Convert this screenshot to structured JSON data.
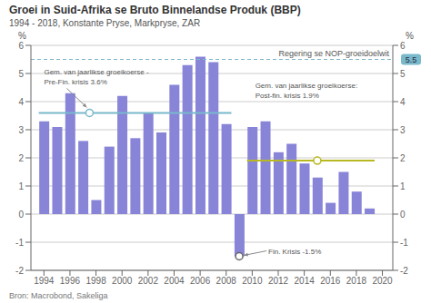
{
  "chart_data": {
    "type": "bar",
    "title": "Groei in Suid-Afrika se Bruto Binnelandse Produk (BBP)",
    "subtitle": "1994 - 2018, Konstante Pryse, Markpryse, ZAR",
    "source": "Bron: Macrobond, Sakeliga",
    "x": [
      1994,
      1995,
      1996,
      1997,
      1998,
      1999,
      2000,
      2001,
      2002,
      2003,
      2004,
      2005,
      2006,
      2007,
      2008,
      2009,
      2010,
      2011,
      2012,
      2013,
      2014,
      2015,
      2016,
      2017,
      2018,
      2019
    ],
    "values": [
      3.3,
      3.1,
      4.3,
      2.6,
      0.5,
      2.4,
      4.2,
      2.7,
      3.6,
      2.9,
      4.6,
      5.3,
      5.6,
      5.4,
      3.2,
      -1.5,
      3.1,
      3.3,
      2.2,
      2.5,
      1.8,
      1.3,
      0.4,
      1.5,
      0.8,
      0.2
    ],
    "color": "#8884d8",
    "xlim": [
      1993.0,
      2020.8
    ],
    "xticks": [
      1994,
      1996,
      1998,
      2000,
      2002,
      2004,
      2006,
      2008,
      2010,
      2012,
      2014,
      2016,
      2018,
      2020
    ],
    "ylim": [
      -2,
      6
    ],
    "yticks": [
      -2,
      -1,
      0,
      1,
      2,
      3,
      4,
      5,
      6
    ],
    "y2lim": [
      -2,
      6
    ],
    "y2ticks": [
      -2,
      -1,
      0,
      1,
      2,
      3,
      4,
      5,
      6
    ],
    "ylabel": "%",
    "y2label": "%",
    "grid": true,
    "reference_lines": [
      {
        "y": 5.5,
        "x": [
          1993.0,
          2020.8
        ],
        "color": "#7ab8cc",
        "line_style": "dashed",
        "label": [
          "Regering se NOP-groeidoelwit"
        ],
        "value_label": "5.5"
      },
      {
        "y": 3.6,
        "x": [
          1993.6,
          2008.4
        ],
        "color": "#7ab8cc",
        "line_style": "solid"
      },
      {
        "y": 1.9,
        "x": [
          2009.6,
          2019.4
        ],
        "color": "#b8b820",
        "line_style": "solid",
        "label": [
          "Gem. van jaarlikse groeikoerse:",
          "Post-fin. krisis 1.9%"
        ]
      }
    ],
    "markers": [
      {
        "x": 1997.5,
        "y": 3.6,
        "color": "#7ab8cc"
      },
      {
        "x": 2015.0,
        "y": 1.9,
        "color": "#b8b820"
      },
      {
        "x": 2009,
        "y": -1.5,
        "color": "#666666"
      }
    ],
    "annotations": [
      {
        "text": [
          "Gem. van jaarlikse groeikoerse -",
          "Pre-Fin. krisis 3.6%"
        ],
        "x": 1997.5,
        "y": 3.6
      },
      {
        "text": [
          "Fin. Krisis -1.5%"
        ],
        "x": 2009,
        "y": -1.5
      }
    ]
  }
}
